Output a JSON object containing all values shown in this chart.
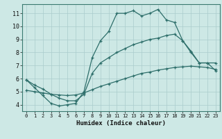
{
  "xlabel": "Humidex (Indice chaleur)",
  "bg_color": "#cde8e5",
  "line_color": "#2d6e6a",
  "grid_color": "#aacccc",
  "xlim": [
    -0.5,
    23.5
  ],
  "ylim": [
    3.5,
    11.7
  ],
  "xticks": [
    0,
    1,
    2,
    3,
    4,
    5,
    6,
    7,
    8,
    9,
    10,
    11,
    12,
    13,
    14,
    15,
    16,
    17,
    18,
    19,
    20,
    21,
    22,
    23
  ],
  "yticks": [
    4,
    5,
    6,
    7,
    8,
    9,
    10,
    11
  ],
  "line1_x": [
    0,
    1,
    2,
    3,
    4,
    5,
    6,
    7,
    8,
    9,
    10,
    11,
    12,
    13,
    14,
    15,
    16,
    17,
    18,
    19,
    20,
    21,
    22,
    23
  ],
  "line1_y": [
    5.9,
    5.3,
    4.7,
    4.1,
    3.9,
    4.0,
    4.1,
    5.0,
    7.6,
    8.9,
    9.6,
    11.0,
    11.0,
    11.2,
    10.8,
    11.0,
    11.3,
    10.5,
    10.3,
    8.9,
    8.0,
    7.2,
    7.2,
    6.6
  ],
  "line2_x": [
    0,
    1,
    2,
    3,
    4,
    5,
    6,
    7,
    8,
    9,
    10,
    11,
    12,
    13,
    14,
    15,
    16,
    17,
    18,
    19,
    20,
    21,
    22,
    23
  ],
  "line2_y": [
    5.9,
    5.5,
    5.2,
    4.8,
    4.5,
    4.3,
    4.3,
    4.8,
    6.4,
    7.2,
    7.6,
    8.0,
    8.3,
    8.6,
    8.8,
    9.0,
    9.1,
    9.3,
    9.4,
    8.9,
    8.1,
    7.2,
    7.2,
    7.2
  ],
  "line3_x": [
    0,
    1,
    2,
    3,
    4,
    5,
    6,
    7,
    8,
    9,
    10,
    11,
    12,
    13,
    14,
    15,
    16,
    17,
    18,
    19,
    20,
    21,
    22,
    23
  ],
  "line3_y": [
    5.1,
    5.0,
    4.9,
    4.8,
    4.75,
    4.7,
    4.75,
    4.9,
    5.15,
    5.4,
    5.6,
    5.8,
    6.0,
    6.2,
    6.4,
    6.5,
    6.65,
    6.75,
    6.85,
    6.9,
    6.95,
    6.9,
    6.85,
    6.7
  ]
}
